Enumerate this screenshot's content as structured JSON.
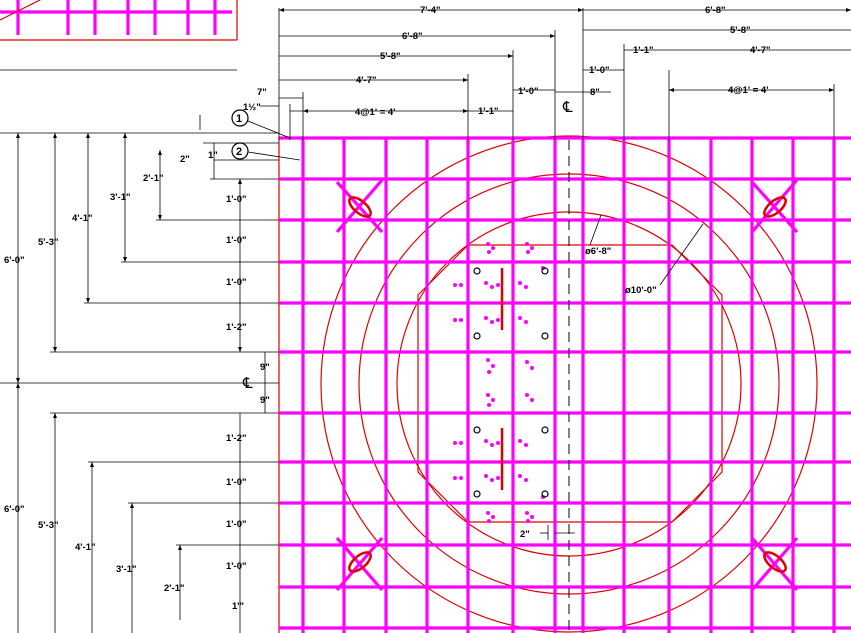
{
  "drawing": {
    "colors": {
      "rebar": "#ff00ff",
      "outline": "#e00000",
      "dims": "#000000"
    },
    "top_dims": {
      "d_7_4": "7'-4\"",
      "d_6_8_left": "6'-8\"",
      "d_5_8_left": "5'-8\"",
      "d_4_7_left": "4'-7\"",
      "d_1_0_top_left": "1'-0\"",
      "d_7": "7\"",
      "d_1_half": "1½\"",
      "d_4at1_left": "4@1' = 4'",
      "d_1_1_left": "1'-1\"",
      "d_6_8_right": "6'-8\"",
      "d_5_8_right": "5'-8\"",
      "d_1_1_right": "1'-1\"",
      "d_4_7_right": "4'-7\"",
      "d_1_0_right": "1'-0\"",
      "d_8": "8\"",
      "d_4at1_right": "4@1' = 4'"
    },
    "left_dims_top": {
      "d_6_0": "6'-0\"",
      "d_5_3": "5'-3\"",
      "d_4_1": "4'-1\"",
      "d_3_1": "3'-1\"",
      "d_2_1": "2'-1\"",
      "d_2": "2\"",
      "d_1": "1\"",
      "d_1_0_a": "1'-0\"",
      "d_1_0_b": "1'-0\"",
      "d_1_0_c": "1'-0\"",
      "d_1_2": "1'-2\"",
      "d_9_a": "9\"",
      "d_9_b": "9\""
    },
    "left_dims_bottom": {
      "d_6_0": "6'-0\"",
      "d_5_3": "5'-3\"",
      "d_4_1": "4'-1\"",
      "d_3_1": "3'-1\"",
      "d_2_1": "2'-1\"",
      "d_1_2": "1'-2\"",
      "d_1_0_a": "1'-0\"",
      "d_1_0_b": "1'-0\"",
      "d_1_0_c": "1'-0\"",
      "d_1": "1'\""
    },
    "centerline_symbol": "℄",
    "callouts": {
      "one": "1",
      "two": "2"
    },
    "diameters": {
      "inner": "ø6'-8\"",
      "outer": "ø10'-0\""
    },
    "spacing_2": "2\""
  }
}
